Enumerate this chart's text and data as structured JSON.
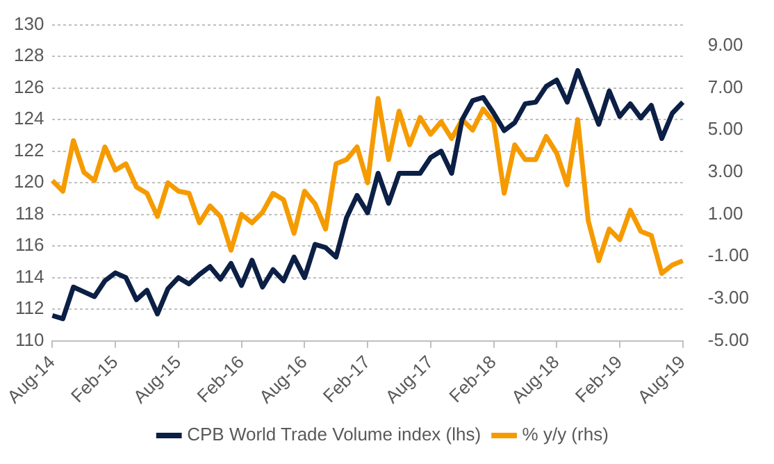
{
  "chart_data": {
    "type": "line",
    "categories": [
      "Aug-14",
      null,
      null,
      null,
      null,
      null,
      "Feb-15",
      null,
      null,
      null,
      null,
      null,
      "Aug-15",
      null,
      null,
      null,
      null,
      null,
      "Feb-16",
      null,
      null,
      null,
      null,
      null,
      "Aug-16",
      null,
      null,
      null,
      null,
      null,
      "Feb-17",
      null,
      null,
      null,
      null,
      null,
      "Aug-17",
      null,
      null,
      null,
      null,
      null,
      "Feb-18",
      null,
      null,
      null,
      null,
      null,
      "Aug-18",
      null,
      null,
      null,
      null,
      null,
      "Feb-19",
      null,
      null,
      null,
      null,
      null,
      "Aug-19"
    ],
    "series": [
      {
        "name": "CPB World Trade Volume index (lhs)",
        "color": "#0c1f45",
        "values": [
          111.6,
          111.4,
          113.4,
          113.1,
          112.8,
          113.8,
          114.3,
          114.0,
          112.6,
          113.2,
          111.7,
          113.3,
          114.0,
          113.6,
          114.2,
          114.7,
          113.9,
          114.9,
          113.5,
          115.1,
          113.4,
          114.5,
          113.8,
          115.3,
          114.0,
          116.1,
          115.9,
          115.3,
          117.8,
          119.2,
          118.1,
          120.6,
          118.7,
          120.6,
          120.6,
          120.6,
          121.6,
          122.0,
          120.6,
          124.0,
          125.2,
          125.4,
          124.4,
          123.3,
          123.8,
          125.0,
          125.1,
          126.1,
          126.5,
          125.1,
          127.1,
          125.4,
          123.7,
          125.8,
          124.2,
          125.0,
          124.1,
          124.9,
          122.8,
          124.4,
          125.1
        ]
      },
      {
        "name": "% y/y (rhs)",
        "color": "#f59b00",
        "axis": "y2",
        "values": [
          2.6,
          2.1,
          4.5,
          3.0,
          2.6,
          4.2,
          3.1,
          3.4,
          2.3,
          2.0,
          0.9,
          2.5,
          2.1,
          2.0,
          0.6,
          1.4,
          0.9,
          -0.7,
          1.0,
          0.6,
          1.1,
          2.0,
          1.7,
          0.1,
          2.1,
          1.5,
          0.3,
          3.4,
          3.6,
          4.2,
          2.5,
          6.5,
          3.6,
          5.9,
          4.3,
          5.6,
          4.8,
          5.4,
          4.6,
          5.5,
          5.0,
          6.0,
          5.4,
          2.0,
          4.3,
          3.6,
          3.6,
          4.7,
          3.9,
          2.4,
          5.5,
          0.7,
          -1.2,
          0.3,
          -0.2,
          1.2,
          0.2,
          0.0,
          -1.8,
          -1.4,
          -1.2
        ]
      }
    ],
    "ylim": [
      110,
      130
    ],
    "yticks": [
      110,
      112,
      114,
      116,
      118,
      120,
      122,
      124,
      126,
      128,
      130
    ],
    "y2lim": [
      -5,
      10
    ],
    "y2ticks": [
      {
        "value": -5,
        "label": "-5.00"
      },
      {
        "value": -3,
        "label": "-3.00"
      },
      {
        "value": -1,
        "label": "-1.00"
      },
      {
        "value": 1,
        "label": "1.00"
      },
      {
        "value": 3,
        "label": "3.00"
      },
      {
        "value": 5,
        "label": "5.00"
      },
      {
        "value": 7,
        "label": "7.00"
      },
      {
        "value": 9,
        "label": "9.00"
      }
    ],
    "grid": "y",
    "legend": "bottom",
    "marker": "none",
    "line_style": "solid"
  }
}
